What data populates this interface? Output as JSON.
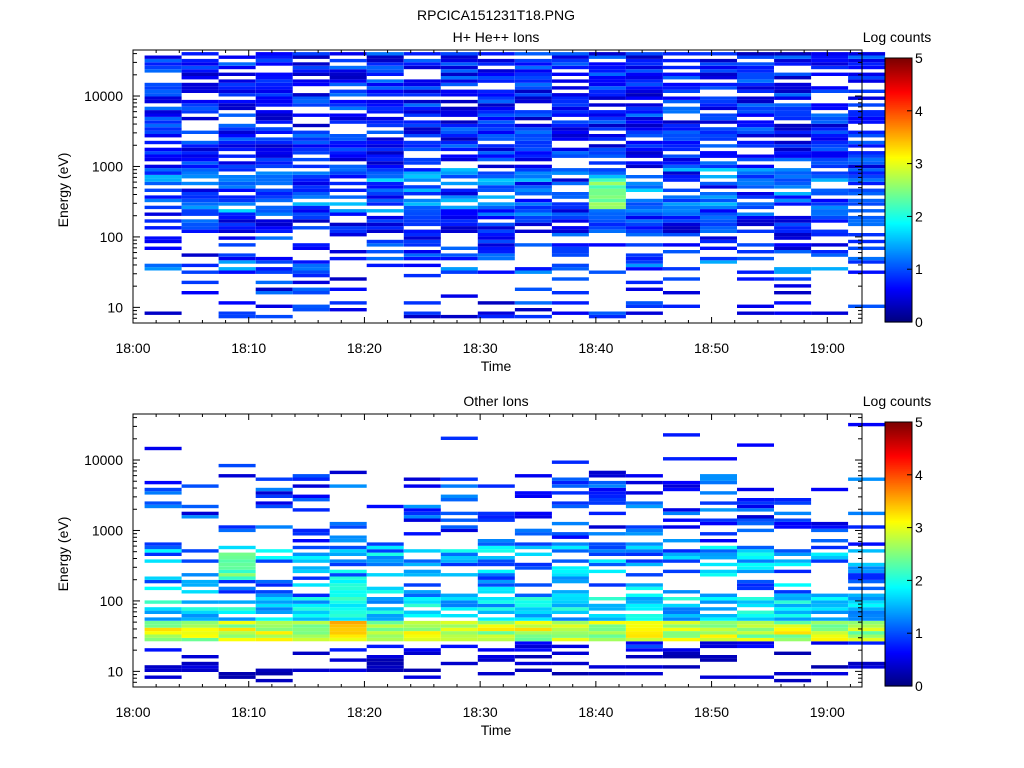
{
  "figure": {
    "title": "RPCICA151231T18.PNG"
  },
  "chart_data": [
    {
      "type": "heatmap",
      "title": "H+ He++ Ions",
      "xlabel": "Time",
      "ylabel": "Energy (eV)",
      "x_ticks": [
        "18:00",
        "18:10",
        "18:20",
        "18:30",
        "18:40",
        "18:50",
        "19:00"
      ],
      "x_range": [
        "18:00",
        "19:03"
      ],
      "y_scale": "log",
      "y_range": [
        6,
        45000
      ],
      "y_ticks": [
        "10",
        "100",
        "1000",
        "10000"
      ],
      "colorbar": {
        "label": "Log counts",
        "range": [
          0,
          5
        ],
        "ticks": [
          "0",
          "1",
          "2",
          "3",
          "4",
          "5"
        ],
        "colormap": "jet"
      },
      "time_bins_minutes": [
        1,
        4.2,
        7.4,
        10.6,
        13.8,
        17,
        20.2,
        23.4,
        26.6,
        29.8,
        33,
        36.2,
        39.4,
        42.6,
        45.8,
        49,
        52.2,
        55.4,
        58.6,
        61.8
      ],
      "energy_level": "high",
      "hotspots": [
        {
          "start_minute": 39.4,
          "end_minute": 42.6,
          "energy_low": 260,
          "energy_high": 700,
          "log_counts": 2.5
        }
      ],
      "note_counts": "values range mostly 0.3–1.5 log counts across 8–40000 eV"
    },
    {
      "type": "heatmap",
      "title": "Other Ions",
      "xlabel": "Time",
      "ylabel": "Energy (eV)",
      "x_ticks": [
        "18:00",
        "18:10",
        "18:20",
        "18:30",
        "18:40",
        "18:50",
        "19:00"
      ],
      "x_range": [
        "18:00",
        "19:03"
      ],
      "y_scale": "log",
      "y_range": [
        6,
        45000
      ],
      "y_ticks": [
        "10",
        "100",
        "1000",
        "10000"
      ],
      "colorbar": {
        "label": "Log counts",
        "range": [
          0,
          5
        ],
        "ticks": [
          "0",
          "1",
          "2",
          "3",
          "4",
          "5"
        ],
        "colormap": "jet"
      },
      "time_bins_minutes": [
        1,
        4.2,
        7.4,
        10.6,
        13.8,
        17,
        20.2,
        23.4,
        26.6,
        29.8,
        33,
        36.2,
        39.4,
        42.6,
        45.8,
        49,
        52.2,
        55.4,
        58.6,
        61.8
      ],
      "energy_level": "low",
      "band": {
        "energy_low": 28,
        "energy_high": 55,
        "log_counts": 3.0
      },
      "hotspots": [
        {
          "start_minute": 17,
          "end_minute": 20.2,
          "energy_low": 35,
          "energy_high": 55,
          "log_counts": 3.4
        },
        {
          "start_minute": 17,
          "end_minute": 20.2,
          "energy_low": 60,
          "energy_high": 220,
          "log_counts": 2.0
        },
        {
          "start_minute": 7.4,
          "end_minute": 10.6,
          "energy_low": 200,
          "energy_high": 500,
          "log_counts": 2.4
        }
      ],
      "sparse_high_energy_max": 35000
    }
  ]
}
